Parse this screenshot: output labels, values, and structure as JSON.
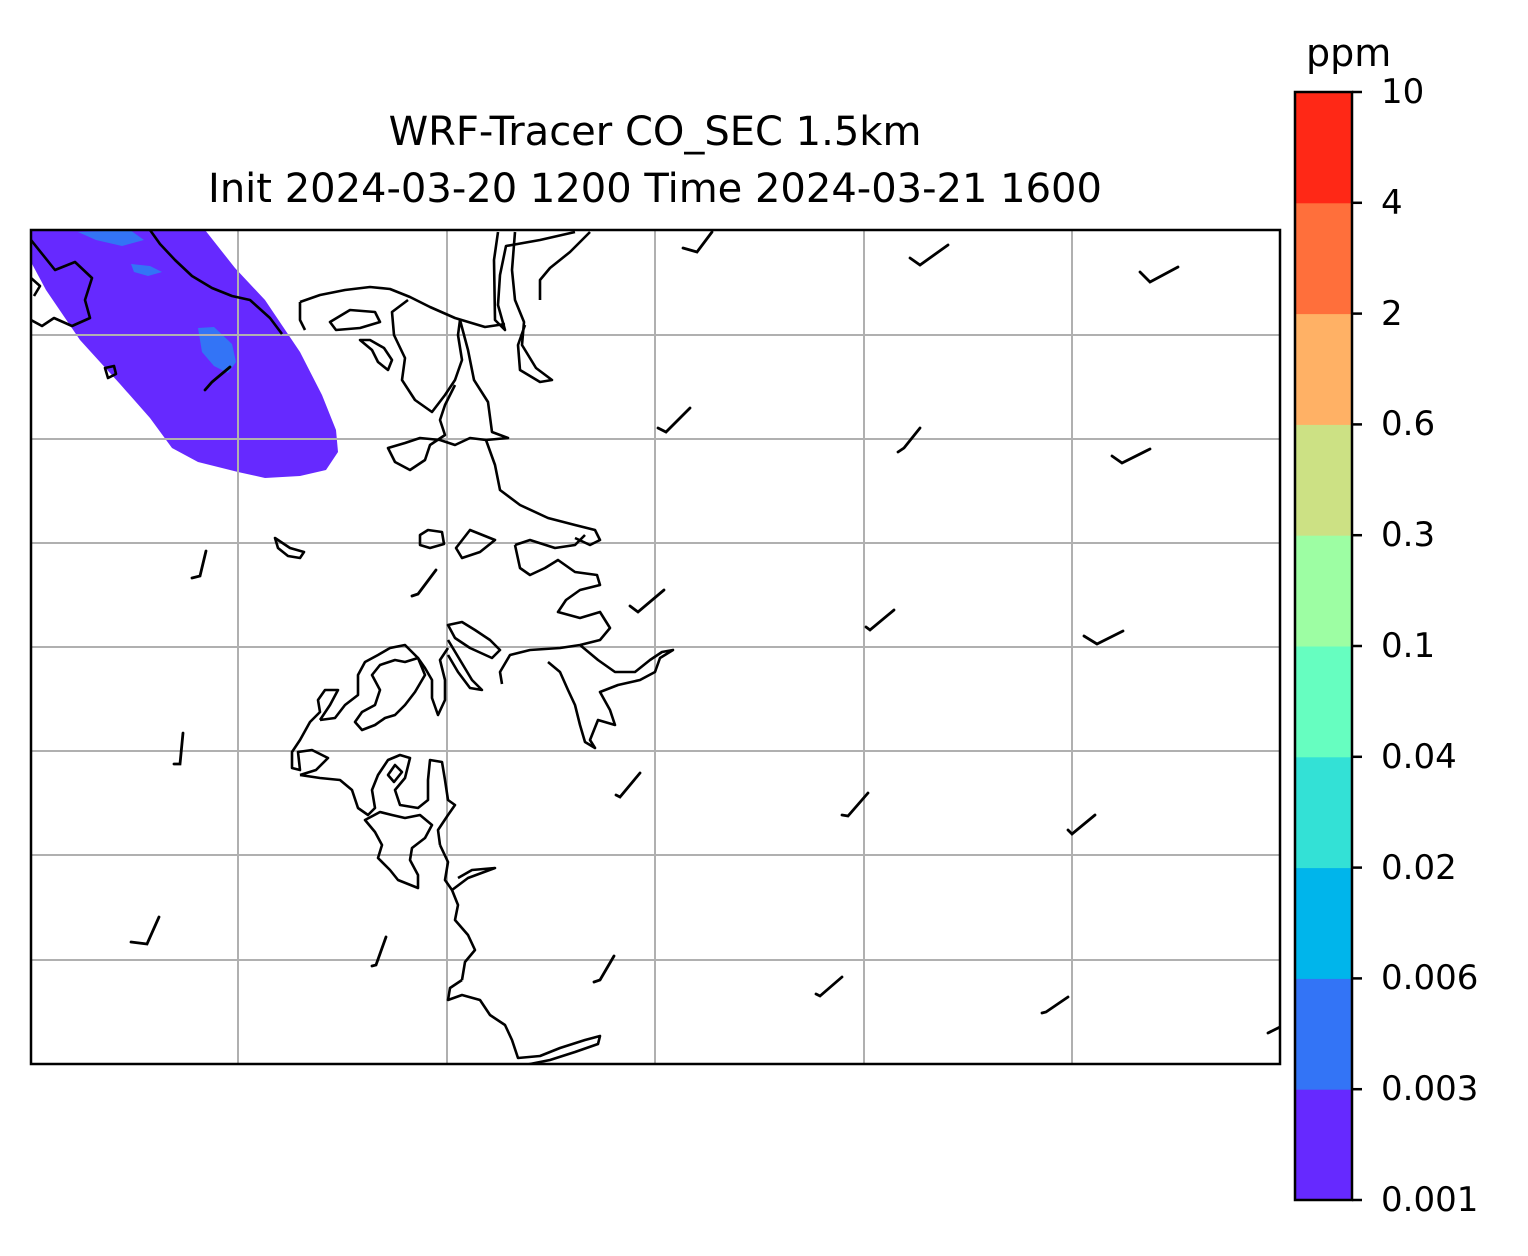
{
  "title": {
    "line1": "WRF-Tracer CO_SEC 1.5km",
    "line2": "Init 2024-03-20 1200 Time 2024-03-21 1600"
  },
  "colorbar": {
    "unit": "ppm",
    "levels": [
      "0.001",
      "0.003",
      "0.006",
      "0.02",
      "0.04",
      "0.1",
      "0.3",
      "0.6",
      "2",
      "4",
      "10"
    ],
    "colors": [
      "#6629ff",
      "#3374f6",
      "#00b5eb",
      "#33e1d6",
      "#66fec0",
      "#9dfea3",
      "#cce184",
      "#ffb165",
      "#ff6f3b",
      "#ff2816"
    ]
  },
  "map": {
    "grid": "on",
    "grid_color": "#b0b0b0",
    "coastline_color": "#000000",
    "plume_levels": [
      "0.001-0.003",
      "0.003-0.006"
    ]
  }
}
